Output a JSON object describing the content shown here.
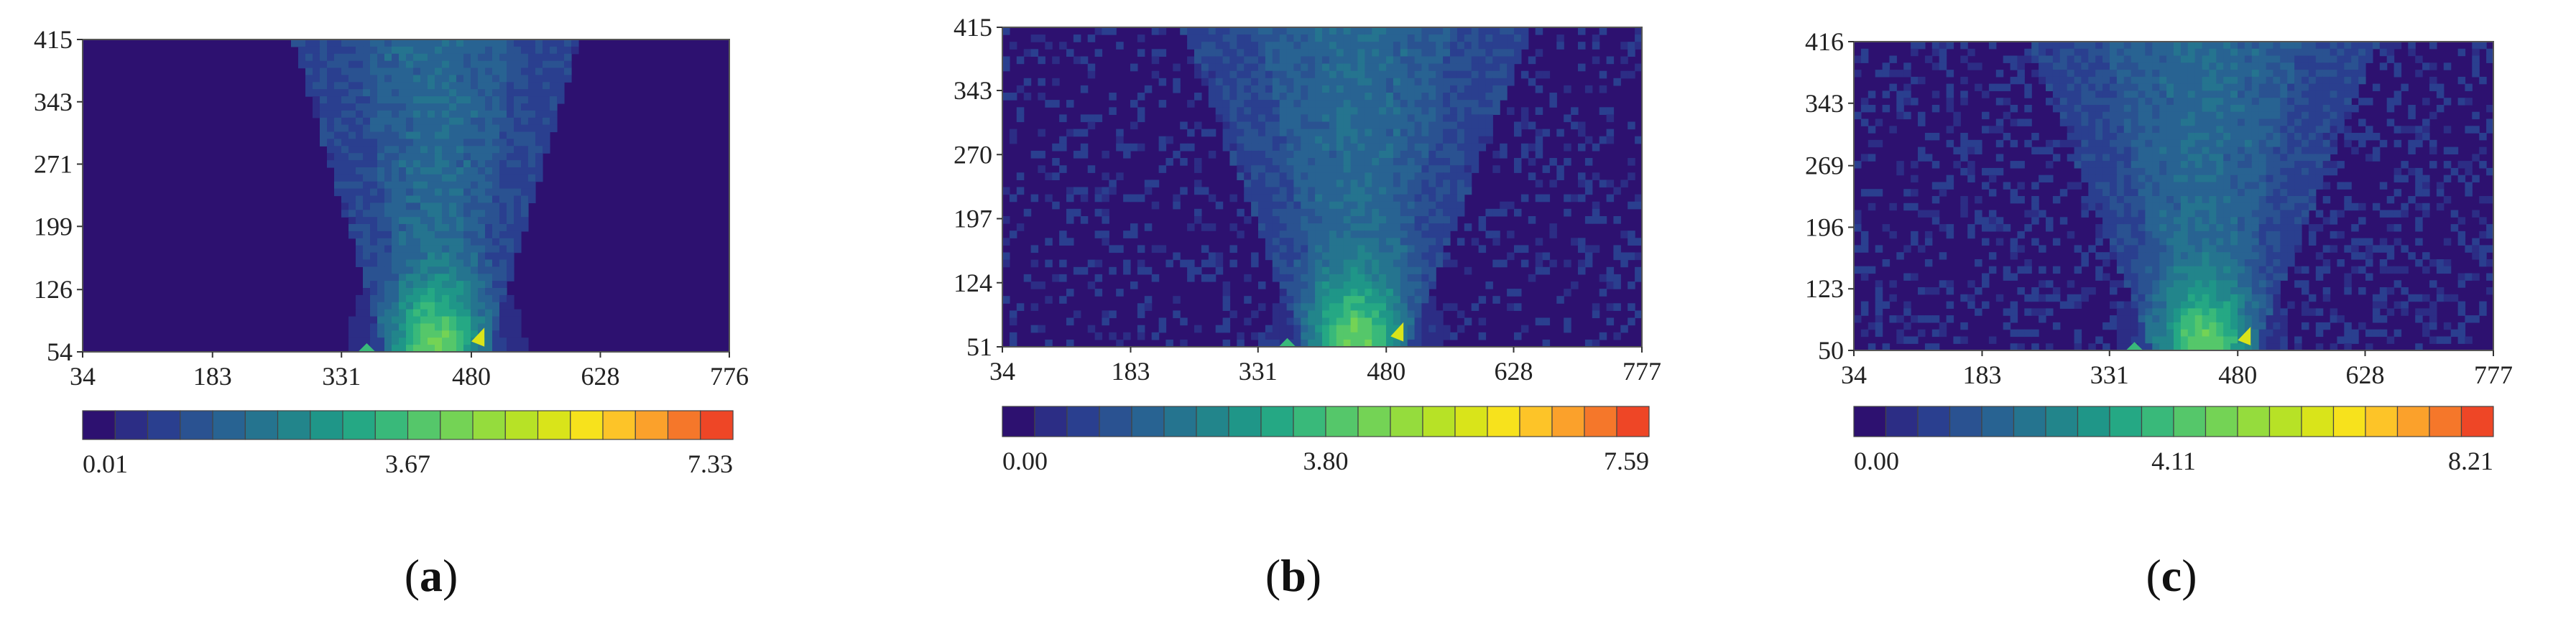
{
  "figure": {
    "panels": [
      {
        "label_open": "(",
        "label_letter": "a",
        "label_close": ")"
      },
      {
        "label_open": "(",
        "label_letter": "b",
        "label_close": ")"
      },
      {
        "label_open": "(",
        "label_letter": "c",
        "label_close": ")"
      }
    ]
  },
  "chart_data": [
    {
      "type": "heatmap",
      "title": "",
      "xlabel": "",
      "ylabel": "",
      "x_ticks": [
        "34",
        "183",
        "331",
        "480",
        "628",
        "776"
      ],
      "y_ticks": [
        "54",
        "126",
        "199",
        "271",
        "343",
        "415"
      ],
      "xlim": [
        34,
        776
      ],
      "ylim": [
        54,
        415
      ],
      "colorbar": {
        "min": 0.01,
        "mid": 3.67,
        "max": 7.33,
        "labels": [
          "0.01",
          "3.67",
          "7.33"
        ],
        "levels": 20
      },
      "plume": {
        "center_x": 440,
        "half_width_top": 95,
        "intensity": 1.0,
        "spread": 1.0
      }
    },
    {
      "type": "heatmap",
      "title": "",
      "xlabel": "",
      "ylabel": "",
      "x_ticks": [
        "34",
        "183",
        "331",
        "480",
        "628",
        "777"
      ],
      "y_ticks": [
        "51",
        "124",
        "197",
        "270",
        "343",
        "415"
      ],
      "xlim": [
        34,
        777
      ],
      "ylim": [
        51,
        415
      ],
      "colorbar": {
        "min": 0.0,
        "mid": 3.8,
        "max": 7.59,
        "labels": [
          "0.00",
          "3.80",
          "7.59"
        ],
        "levels": 20
      },
      "plume": {
        "center_x": 445,
        "half_width_top": 130,
        "intensity": 1.0,
        "spread": 1.4
      }
    },
    {
      "type": "heatmap",
      "title": "",
      "xlabel": "",
      "ylabel": "",
      "x_ticks": [
        "34",
        "183",
        "331",
        "480",
        "628",
        "777"
      ],
      "y_ticks": [
        "50",
        "123",
        "196",
        "269",
        "343",
        "416"
      ],
      "xlim": [
        34,
        777
      ],
      "ylim": [
        50,
        416
      ],
      "colorbar": {
        "min": 0.0,
        "mid": 4.11,
        "max": 8.21,
        "labels": [
          "0.00",
          "4.11",
          "8.21"
        ],
        "levels": 20
      },
      "plume": {
        "center_x": 440,
        "half_width_top": 130,
        "intensity": 0.95,
        "spread": 1.5
      }
    }
  ],
  "colors": {
    "scale": [
      "#2d1170",
      "#2c2d85",
      "#2a3f8f",
      "#2a5291",
      "#286392",
      "#25748f",
      "#22858b",
      "#1f9688",
      "#25a884",
      "#39b97a",
      "#55c76a",
      "#74d355",
      "#95dc3d",
      "#b7e226",
      "#d9e41a",
      "#f7e21c",
      "#fdc428",
      "#fba12b",
      "#f5772a",
      "#ee4626"
    ],
    "background": "#ffffff",
    "frame": "#555555"
  }
}
